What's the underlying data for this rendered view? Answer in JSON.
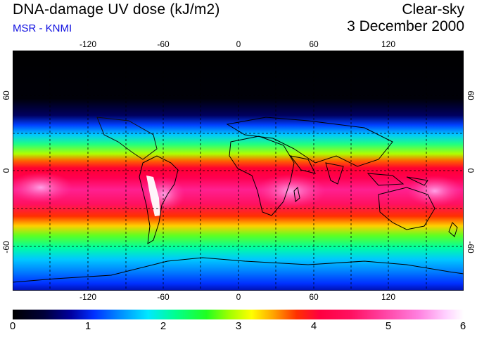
{
  "header": {
    "title": "DNA-damage UV dose (kJ/m2)",
    "subtitle": "MSR - KNMI",
    "mode": "Clear-sky",
    "date": "3 December 2000"
  },
  "map": {
    "projection": "lon-lat",
    "lon_ticks": [
      "-120",
      "-60",
      "0",
      "60",
      "120"
    ],
    "lat_ticks": [
      "60",
      "0",
      "-60"
    ],
    "lon_range": [
      -180,
      180
    ],
    "lat_range": [
      -90,
      90
    ],
    "field": "Daily UV dose (DNA-weighted), Southern-hemisphere summer maximum around 15S-30S"
  },
  "colorbar": {
    "labels": [
      "0",
      "1",
      "2",
      "3",
      "4",
      "5",
      "6"
    ],
    "min": 0,
    "max": 6
  }
}
